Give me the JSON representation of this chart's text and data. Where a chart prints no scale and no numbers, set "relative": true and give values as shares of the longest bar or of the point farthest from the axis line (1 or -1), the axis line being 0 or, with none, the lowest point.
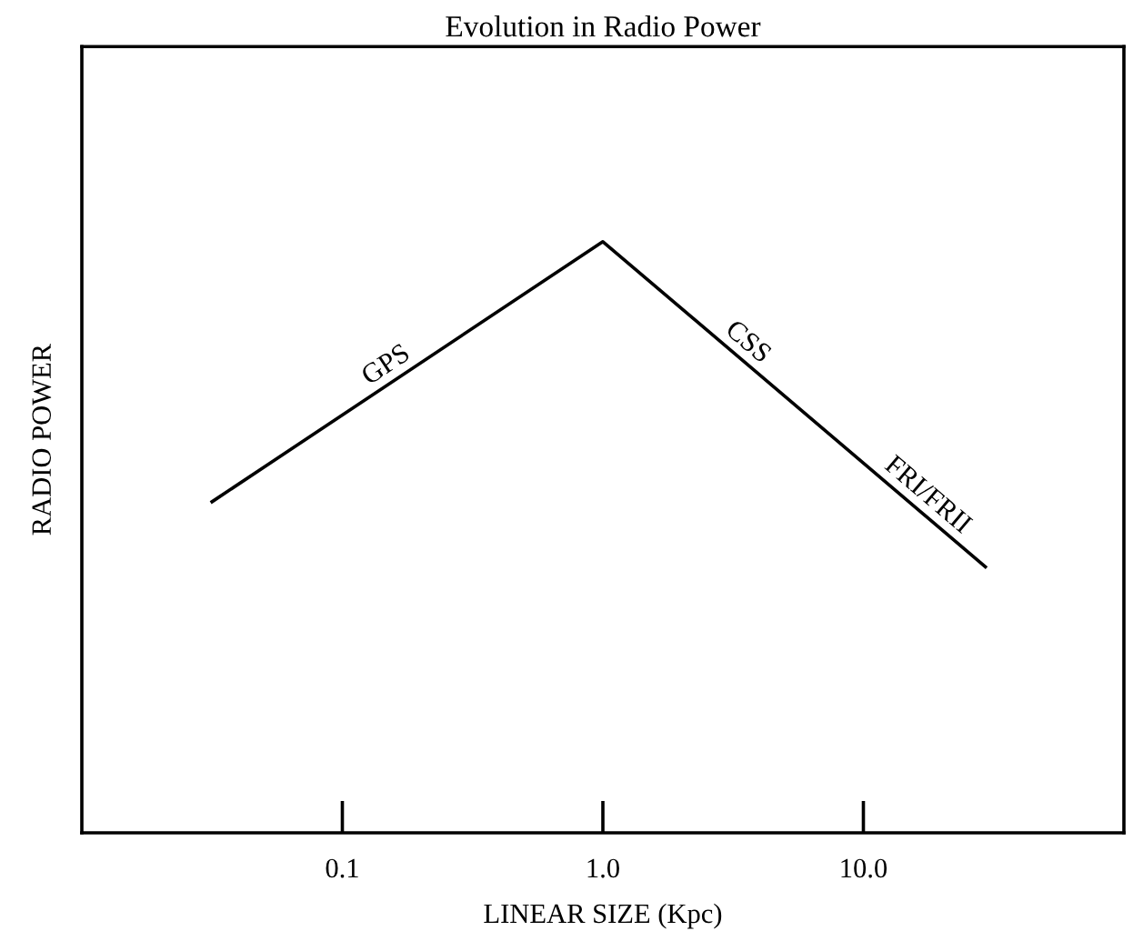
{
  "chart_data": {
    "type": "line",
    "title": "Evolution in Radio Power",
    "xlabel": "LINEAR SIZE (Kpc)",
    "ylabel": "RADIO POWER",
    "relative": true,
    "log": "x",
    "x": [
      0.0316,
      1.0,
      29.4
    ],
    "series": [
      {
        "color": "#000000",
        "values": [
          0.56,
          1,
          0.45
        ]
      }
    ],
    "xlim": [
      0.01,
      100
    ],
    "xticks": [
      {
        "value": 0.1,
        "label": "0.1"
      },
      {
        "value": 1.0,
        "label": "1.0"
      },
      {
        "value": 10.0,
        "label": "10.0"
      }
    ],
    "grid": false,
    "marker": "none",
    "line_style": "solid",
    "annotations": [
      "GPS",
      "CSS",
      "FRI/FRII"
    ]
  }
}
